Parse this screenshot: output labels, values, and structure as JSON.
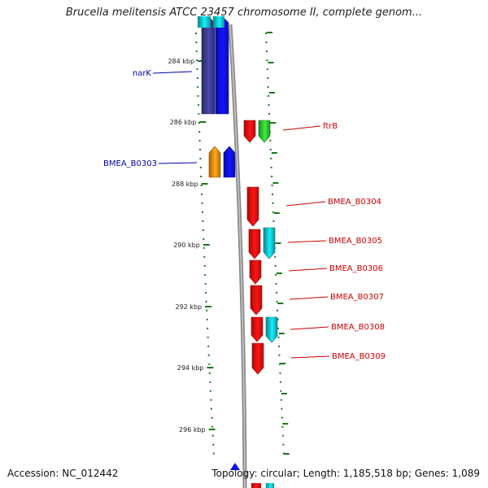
{
  "title": "Brucella melitensis ATCC 23457 chromosome II, complete genom...",
  "footer": {
    "accession": "Accession: NC_012442",
    "topology": "Topology: circular; Length: 1,185,518 bp; Genes: 1,089"
  },
  "colors": {
    "forward_cds": "#1010ee",
    "forward_dark": "#3c3a8c",
    "forward_orange": "#f08a10",
    "reverse_red": "#ee1010",
    "reverse_green": "#30c030",
    "reverse_cyan": "#10c0c8",
    "backbone": "#909090",
    "ticks": "#1a7a1a",
    "label_blue": "#0000aa",
    "label_red": "#cc0000"
  },
  "ticks": [
    "284 kbp",
    "286 kbp",
    "288 kbp",
    "290 kbp",
    "292 kbp",
    "294 kbp",
    "296 kbp"
  ],
  "features": [
    {
      "name": "narK",
      "strand": "forward",
      "color": "forward_dark",
      "labeled": true
    },
    {
      "name": "",
      "strand": "forward",
      "color": "forward_cds",
      "labeled": false
    },
    {
      "name": "BMEA_B0303",
      "strand": "forward",
      "color": "forward_orange",
      "labeled": true
    },
    {
      "name": "",
      "strand": "forward",
      "color": "forward_cds",
      "labeled": false
    },
    {
      "name": "ftrB",
      "strand": "reverse",
      "color": "reverse_green",
      "labeled": true
    },
    {
      "name": "",
      "strand": "reverse",
      "color": "reverse_red",
      "labeled": false
    },
    {
      "name": "BMEA_B0304",
      "strand": "reverse",
      "color": "reverse_red",
      "labeled": true
    },
    {
      "name": "BMEA_B0305",
      "strand": "reverse",
      "color": "reverse_cyan",
      "labeled": true
    },
    {
      "name": "",
      "strand": "reverse",
      "color": "reverse_red",
      "labeled": false
    },
    {
      "name": "BMEA_B0306",
      "strand": "reverse",
      "color": "reverse_red",
      "labeled": true
    },
    {
      "name": "BMEA_B0307",
      "strand": "reverse",
      "color": "reverse_red",
      "labeled": true
    },
    {
      "name": "BMEA_B0308",
      "strand": "reverse",
      "color": "reverse_cyan",
      "labeled": true
    },
    {
      "name": "",
      "strand": "reverse",
      "color": "reverse_red",
      "labeled": false
    },
    {
      "name": "BMEA_B0309",
      "strand": "reverse",
      "color": "reverse_red",
      "labeled": true
    }
  ]
}
